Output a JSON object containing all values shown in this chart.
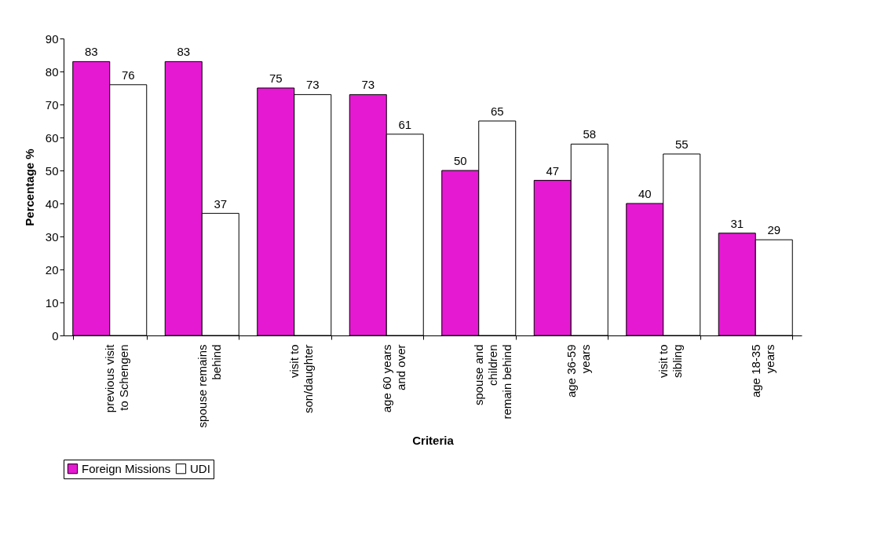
{
  "chart_data": {
    "type": "bar",
    "xlabel": "Criteria",
    "ylabel": "Percentage %",
    "categories": [
      "previous visit to Schengen",
      "spouse remains behind",
      "visit to son/daughter",
      "age 60 years and over",
      "spouse and children remain behind",
      "age 36-59 years",
      "visit to sibling",
      "age 18-35 years"
    ],
    "series": [
      {
        "name": "Foreign Missions",
        "color": "#e619d3",
        "values": [
          83,
          83,
          75,
          73,
          50,
          47,
          40,
          31
        ]
      },
      {
        "name": "UDI",
        "color": "#ffffff",
        "values": [
          76,
          37,
          73,
          61,
          65,
          58,
          55,
          29
        ]
      }
    ],
    "ylim": [
      0,
      90
    ],
    "yticks": [
      0,
      10,
      20,
      30,
      40,
      50,
      60,
      70,
      80,
      90
    ],
    "grid": false,
    "legend": "bottom",
    "data_labels": true
  }
}
